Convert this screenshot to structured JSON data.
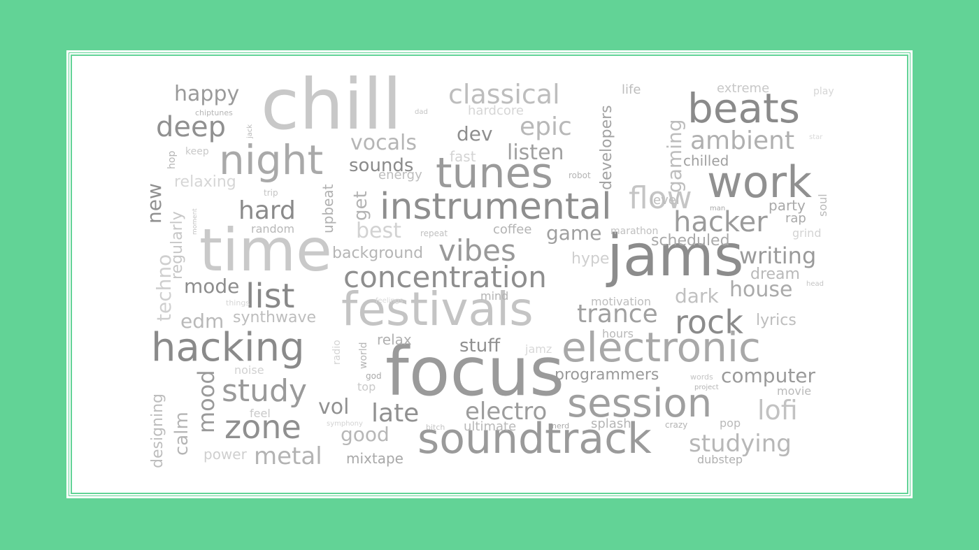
{
  "words": [
    {
      "text": "chill",
      "color": "#c8c8c8"
    },
    {
      "text": "time",
      "color": "#c9c9c9"
    },
    {
      "text": "focus",
      "color": "#9a9a9a"
    },
    {
      "text": "jams",
      "color": "#8c8c8c"
    },
    {
      "text": "festivals",
      "color": "#c4c4c4"
    },
    {
      "text": "instrumental",
      "color": "#8e8e8e"
    },
    {
      "text": "tunes",
      "color": "#9a9a9a"
    },
    {
      "text": "electronic",
      "color": "#a8a8a8"
    },
    {
      "text": "soundtrack",
      "color": "#9a9a9a"
    },
    {
      "text": "beats",
      "color": "#8a8a8a"
    },
    {
      "text": "work",
      "color": "#909090"
    },
    {
      "text": "night",
      "color": "#a9a9a9"
    },
    {
      "text": "hacking",
      "color": "#8a8a8a"
    },
    {
      "text": "session",
      "color": "#9f9f9f"
    },
    {
      "text": "concentration",
      "color": "#8e8e8e"
    },
    {
      "text": "vibes",
      "color": "#999999"
    },
    {
      "text": "list",
      "color": "#888888"
    },
    {
      "text": "classical",
      "color": "#bdbdbd"
    },
    {
      "text": "deep",
      "color": "#909090"
    },
    {
      "text": "flow",
      "color": "#c5c5c5"
    },
    {
      "text": "hacker",
      "color": "#9b9b9b"
    },
    {
      "text": "rock",
      "color": "#8b8b8b"
    },
    {
      "text": "zone",
      "color": "#8f8f8f"
    },
    {
      "text": "study",
      "color": "#9a9a9a"
    },
    {
      "text": "ambient",
      "color": "#b0b0b0"
    },
    {
      "text": "epic",
      "color": "#b8b8b8"
    },
    {
      "text": "trance",
      "color": "#a0a0a0"
    },
    {
      "text": "writing",
      "color": "#9a9a9a"
    },
    {
      "text": "lofi",
      "color": "#c2c2c2"
    },
    {
      "text": "studying",
      "color": "#b7b7b7"
    },
    {
      "text": "late",
      "color": "#909090"
    },
    {
      "text": "electro",
      "color": "#9c9c9c"
    },
    {
      "text": "hard",
      "color": "#8a8a8a"
    },
    {
      "text": "metal",
      "color": "#b3b3b3"
    },
    {
      "text": "house",
      "color": "#aaaaaa"
    },
    {
      "text": "computer",
      "color": "#9a9a9a"
    },
    {
      "text": "vocals",
      "color": "#b5b5b5"
    },
    {
      "text": "listen",
      "color": "#a0a0a0"
    },
    {
      "text": "happy",
      "color": "#9a9a9a"
    },
    {
      "text": "dev",
      "color": "#8e8e8e"
    },
    {
      "text": "best",
      "color": "#d2d2d2"
    },
    {
      "text": "mode",
      "color": "#8d8d8d"
    },
    {
      "text": "edm",
      "color": "#b9b9b9"
    },
    {
      "text": "game",
      "color": "#9f9f9f"
    },
    {
      "text": "dark",
      "color": "#c0c0c0"
    },
    {
      "text": "stuff",
      "color": "#8f8f8f"
    },
    {
      "text": "vol",
      "color": "#909090"
    },
    {
      "text": "good",
      "color": "#b7b7b7"
    },
    {
      "text": "mood",
      "color": "#9a9a9a"
    },
    {
      "text": "sounds",
      "color": "#8a8a8a"
    },
    {
      "text": "background",
      "color": "#b5b5b5"
    },
    {
      "text": "programmers",
      "color": "#9a9a9a"
    },
    {
      "text": "techno",
      "color": "#cfcfcf"
    },
    {
      "text": "new",
      "color": "#909090"
    },
    {
      "text": "gaming",
      "color": "#bdbdbd"
    },
    {
      "text": "developers",
      "color": "#a3a3a3"
    },
    {
      "text": "calm",
      "color": "#b5b5b5"
    },
    {
      "text": "get",
      "color": "#b3b3b3"
    },
    {
      "text": "scheduled",
      "color": "#a9a9a9"
    },
    {
      "text": "synthwave",
      "color": "#bdbdbd"
    },
    {
      "text": "lyrics",
      "color": "#bdbdbd"
    },
    {
      "text": "regularly",
      "color": "#c7c7c7"
    },
    {
      "text": "relaxing",
      "color": "#d6d6d6"
    },
    {
      "text": "hype",
      "color": "#cfcfcf"
    },
    {
      "text": "dream",
      "color": "#b9b9b9"
    },
    {
      "text": "party",
      "color": "#a9a9a9"
    },
    {
      "text": "chilled",
      "color": "#a0a0a0"
    },
    {
      "text": "designing",
      "color": "#bdbdbd"
    },
    {
      "text": "mixtape",
      "color": "#a8a8a8"
    },
    {
      "text": "upbeat",
      "color": "#b0b0b0"
    },
    {
      "text": "coffee",
      "color": "#b3b3b3"
    },
    {
      "text": "relax",
      "color": "#b0b0b0"
    },
    {
      "text": "ultimate",
      "color": "#b8b8b8"
    },
    {
      "text": "splash",
      "color": "#b5b5b5"
    },
    {
      "text": "power",
      "color": "#cfcfcf"
    },
    {
      "text": "extreme",
      "color": "#c7c7c7"
    },
    {
      "text": "hardcore",
      "color": "#d6d6d6"
    },
    {
      "text": "fast",
      "color": "#d3d3d3"
    },
    {
      "text": "energy",
      "color": "#bdbdbd"
    },
    {
      "text": "life",
      "color": "#bdbdbd"
    },
    {
      "text": "level",
      "color": "#bdbdbd"
    },
    {
      "text": "rap",
      "color": "#a9a9a9"
    },
    {
      "text": "grind",
      "color": "#d3d3d3"
    },
    {
      "text": "motivation",
      "color": "#bdbdbd"
    },
    {
      "text": "hours",
      "color": "#b9b9b9"
    },
    {
      "text": "mind",
      "color": "#b3b3b3"
    },
    {
      "text": "dubstep",
      "color": "#b0b0b0"
    },
    {
      "text": "pop",
      "color": "#b9b9b9"
    },
    {
      "text": "top",
      "color": "#c9c9c9"
    },
    {
      "text": "noise",
      "color": "#d1d1d1"
    },
    {
      "text": "feel",
      "color": "#c9c9c9"
    },
    {
      "text": "marathon",
      "color": "#c0c0c0"
    },
    {
      "text": "random",
      "color": "#b8b8b8"
    },
    {
      "text": "movie",
      "color": "#b9b9b9"
    },
    {
      "text": "jamz",
      "color": "#d8d8d8"
    },
    {
      "text": "keep",
      "color": "#c9c9c9"
    },
    {
      "text": "hop",
      "color": "#b5b5b5"
    },
    {
      "text": "trip",
      "color": "#c4c4c4"
    },
    {
      "text": "robot",
      "color": "#b3b3b3"
    },
    {
      "text": "repeat",
      "color": "#c0c0c0"
    },
    {
      "text": "man",
      "color": "#a9a9a9"
    },
    {
      "text": "soul",
      "color": "#b9b9b9"
    },
    {
      "text": "play",
      "color": "#d6d6d6"
    },
    {
      "text": "star",
      "color": "#d8d8d8"
    },
    {
      "text": "chiptunes",
      "color": "#b5b5b5"
    },
    {
      "text": "dad",
      "color": "#c4c4c4"
    },
    {
      "text": "jack",
      "color": "#b8b8b8"
    },
    {
      "text": "moment",
      "color": "#c4c4c4"
    },
    {
      "text": "things",
      "color": "#d6d6d6"
    },
    {
      "text": "feelings",
      "color": "#d8d8d8"
    },
    {
      "text": "radio",
      "color": "#d3d3d3"
    },
    {
      "text": "world",
      "color": "#b5b5b5"
    },
    {
      "text": "god",
      "color": "#a9a9a9"
    },
    {
      "text": "symphony",
      "color": "#d3d3d3"
    },
    {
      "text": "bitch",
      "color": "#c4c4c4"
    },
    {
      "text": "nerd",
      "color": "#a9a9a9"
    },
    {
      "text": "crazy",
      "color": "#b3b3b3"
    },
    {
      "text": "words",
      "color": "#c4c4c4"
    },
    {
      "text": "project",
      "color": "#b3b3b3"
    },
    {
      "text": "head",
      "color": "#c4c4c4"
    }
  ]
}
